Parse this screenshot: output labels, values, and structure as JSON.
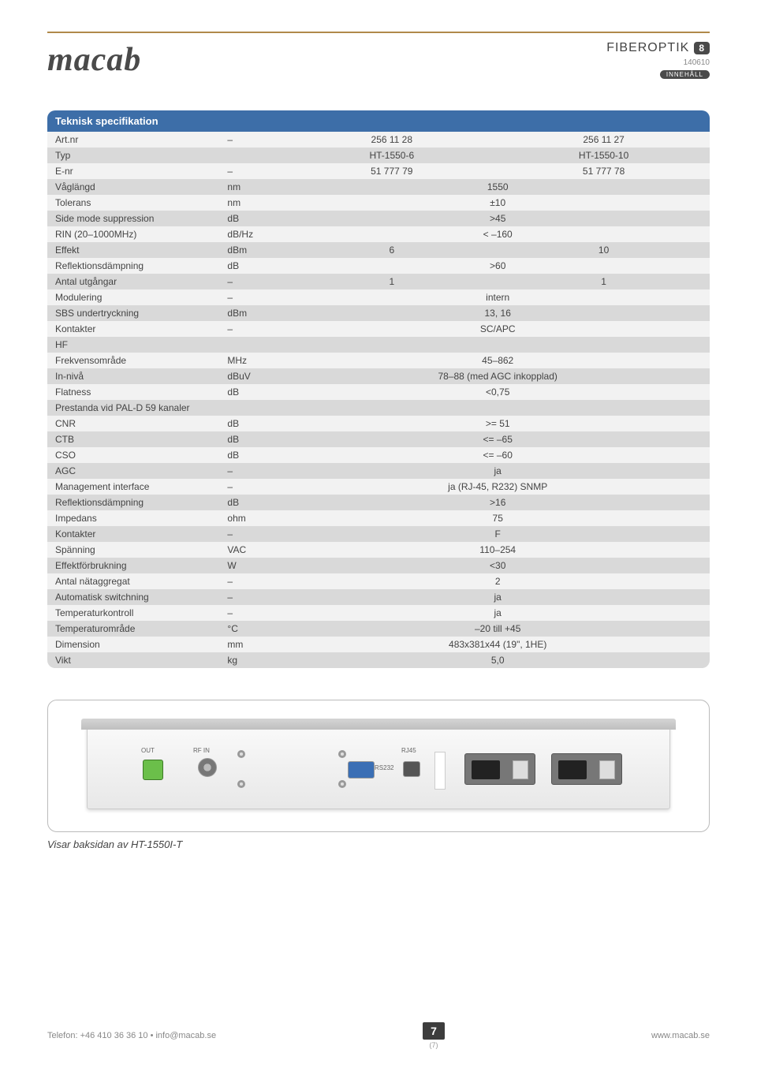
{
  "brand": "macab",
  "header": {
    "section_title": "FIBEROPTIK",
    "section_number": "8",
    "date_code": "140610",
    "toc_label": "INNEHÅLL"
  },
  "table": {
    "title": "Teknisk specifikation",
    "header_bg": "#3d6ea8",
    "header_fg": "#ffffff",
    "row_even_bg": "#f2f2f2",
    "row_odd_bg": "#d9d9d9",
    "text_color": "#444444",
    "font_size_pt": 9,
    "columns": [
      "label",
      "unit",
      "val1",
      "val2"
    ],
    "rows": [
      {
        "label": "Art.nr",
        "unit": "–",
        "v1": "256 11 28",
        "v2": "256 11 27",
        "span": false
      },
      {
        "label": "Typ",
        "unit": "",
        "v1": "HT-1550-6",
        "v2": "HT-1550-10",
        "span": false
      },
      {
        "label": "E-nr",
        "unit": "–",
        "v1": "51 777 79",
        "v2": "51 777 78",
        "span": false
      },
      {
        "label": "Våglängd",
        "unit": "nm",
        "v": "1550",
        "span": true
      },
      {
        "label": "Tolerans",
        "unit": "nm",
        "v": "±10",
        "span": true
      },
      {
        "label": "Side mode suppression",
        "unit": "dB",
        "v": ">45",
        "span": true
      },
      {
        "label": "RIN (20–1000MHz)",
        "unit": "dB/Hz",
        "v": "< –160",
        "span": true
      },
      {
        "label": "Effekt",
        "unit": "dBm",
        "v1": "6",
        "v2": "10",
        "span": false
      },
      {
        "label": "Reflektionsdämpning",
        "unit": "dB",
        "v": ">60",
        "span": true
      },
      {
        "label": "Antal utgångar",
        "unit": "–",
        "v1": "1",
        "v2": "1",
        "span": false
      },
      {
        "label": "Modulering",
        "unit": "–",
        "v": "intern",
        "span": true
      },
      {
        "label": "SBS undertryckning",
        "unit": "dBm",
        "v": "13, 16",
        "span": true
      },
      {
        "label": "Kontakter",
        "unit": "–",
        "v": "SC/APC",
        "span": true
      },
      {
        "label": "HF",
        "unit": "",
        "v": "",
        "span": true
      },
      {
        "label": "Frekvensområde",
        "unit": "MHz",
        "v": "45–862",
        "span": true
      },
      {
        "label": "In-nivå",
        "unit": "dBuV",
        "v": "78–88 (med AGC inkopplad)",
        "span": true
      },
      {
        "label": "Flatness",
        "unit": "dB",
        "v": "<0,75",
        "span": true
      },
      {
        "label": "Prestanda vid PAL-D 59 kanaler",
        "unit": "",
        "v": "",
        "span": true
      },
      {
        "label": "CNR",
        "unit": "dB",
        "v": ">= 51",
        "span": true
      },
      {
        "label": "CTB",
        "unit": "dB",
        "v": "<= –65",
        "span": true
      },
      {
        "label": "CSO",
        "unit": "dB",
        "v": "<= –60",
        "span": true
      },
      {
        "label": "AGC",
        "unit": "–",
        "v": "ja",
        "span": true
      },
      {
        "label": "Management interface",
        "unit": "–",
        "v": "ja (RJ-45, R232) SNMP",
        "span": true
      },
      {
        "label": "Reflektionsdämpning",
        "unit": "dB",
        "v": ">16",
        "span": true
      },
      {
        "label": "Impedans",
        "unit": "ohm",
        "v": "75",
        "span": true
      },
      {
        "label": "Kontakter",
        "unit": "–",
        "v": "F",
        "span": true
      },
      {
        "label": "Spänning",
        "unit": "VAC",
        "v": "110–254",
        "span": true
      },
      {
        "label": "Effektförbrukning",
        "unit": "W",
        "v": "<30",
        "span": true
      },
      {
        "label": "Antal nätaggregat",
        "unit": "–",
        "v": "2",
        "span": true
      },
      {
        "label": "Automatisk switchning",
        "unit": "–",
        "v": "ja",
        "span": true
      },
      {
        "label": "Temperaturkontroll",
        "unit": "–",
        "v": "ja",
        "span": true
      },
      {
        "label": "Temperaturområde",
        "unit": "°C",
        "v": "–20 till +45",
        "span": true
      },
      {
        "label": "Dimension",
        "unit": "mm",
        "v": "483x381x44 (19\", 1HE)",
        "span": true
      },
      {
        "label": "Vikt",
        "unit": "kg",
        "v": "5,0",
        "span": true
      }
    ]
  },
  "image": {
    "caption": "Visar baksidan av HT-1550I-T",
    "port_labels": {
      "out": "OUT",
      "rfin": "RF IN",
      "rj45": "RJ45",
      "rs232": "RS232"
    }
  },
  "footer": {
    "contact": "Telefon: +46 410 36 36 10 • info@macab.se",
    "page_number": "7",
    "sub_page": "(7)",
    "website": "www.macab.se"
  }
}
